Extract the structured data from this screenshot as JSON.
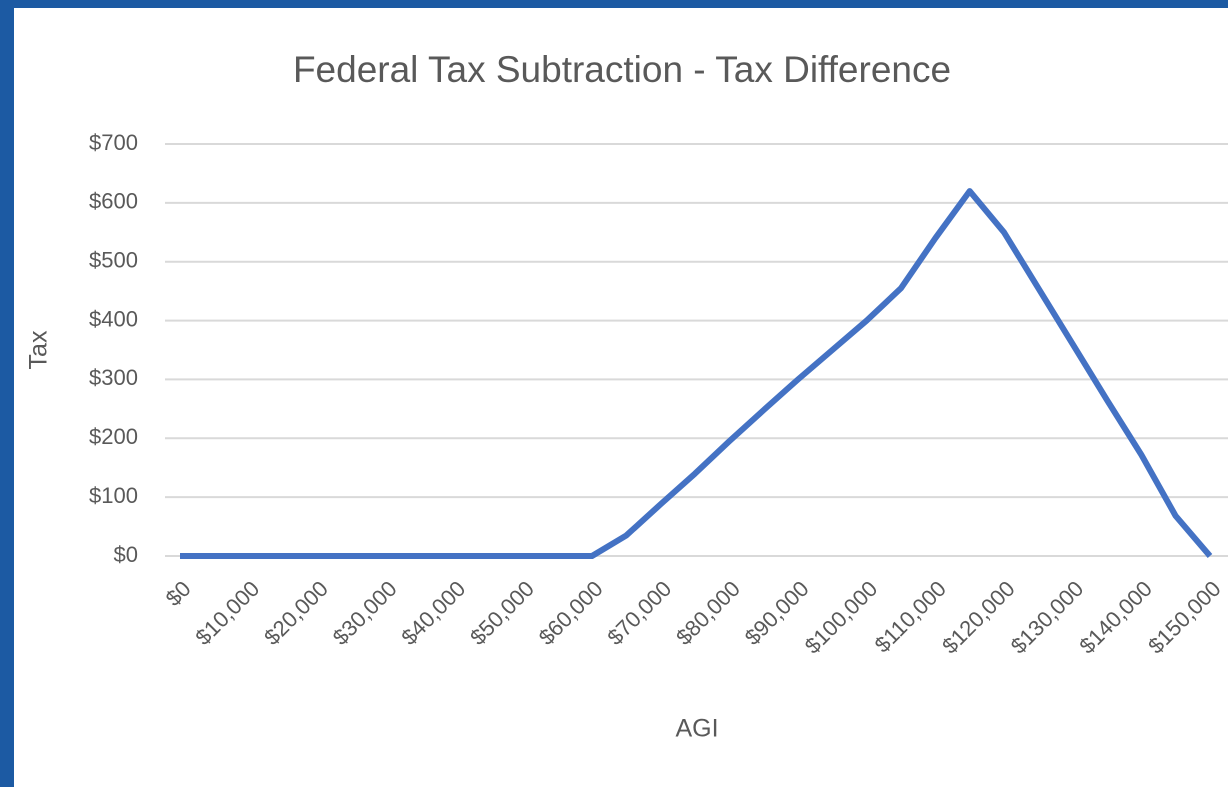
{
  "chart_data": {
    "type": "line",
    "title": "Federal Tax Subtraction - Tax Difference",
    "x_label": "AGI",
    "y_label": "Tax",
    "x": [
      0,
      5000,
      10000,
      15000,
      20000,
      25000,
      30000,
      35000,
      40000,
      45000,
      50000,
      55000,
      60000,
      65000,
      70000,
      75000,
      80000,
      85000,
      90000,
      95000,
      100000,
      105000,
      110000,
      115000,
      120000,
      125000,
      130000,
      135000,
      140000,
      145000,
      150000
    ],
    "series": [
      {
        "name": "Tax Difference",
        "color": "#4472c4",
        "values": [
          0,
          0,
          0,
          0,
          0,
          0,
          0,
          0,
          0,
          0,
          0,
          0,
          0,
          35,
          88,
          140,
          195,
          248,
          300,
          350,
          400,
          455,
          540,
          620,
          550,
          455,
          360,
          265,
          172,
          68,
          0
        ]
      }
    ],
    "xlim": [
      0,
      150000
    ],
    "xticks": [
      {
        "value": 0,
        "label": "$0"
      },
      {
        "value": 10000,
        "label": "$10,000"
      },
      {
        "value": 20000,
        "label": "$20,000"
      },
      {
        "value": 30000,
        "label": "$30,000"
      },
      {
        "value": 40000,
        "label": "$40,000"
      },
      {
        "value": 50000,
        "label": "$50,000"
      },
      {
        "value": 60000,
        "label": "$60,000"
      },
      {
        "value": 70000,
        "label": "$70,000"
      },
      {
        "value": 80000,
        "label": "$80,000"
      },
      {
        "value": 90000,
        "label": "$90,000"
      },
      {
        "value": 100000,
        "label": "$100,000"
      },
      {
        "value": 110000,
        "label": "$110,000"
      },
      {
        "value": 120000,
        "label": "$120,000"
      },
      {
        "value": 130000,
        "label": "$130,000"
      },
      {
        "value": 140000,
        "label": "$140,000"
      },
      {
        "value": 150000,
        "label": "$150,000"
      }
    ],
    "ylim": [
      0,
      700
    ],
    "yticks": [
      {
        "value": 0,
        "label": "$0"
      },
      {
        "value": 100,
        "label": "$100"
      },
      {
        "value": 200,
        "label": "$200"
      },
      {
        "value": 300,
        "label": "$300"
      },
      {
        "value": 400,
        "label": "$400"
      },
      {
        "value": 500,
        "label": "$500"
      },
      {
        "value": 600,
        "label": "$600"
      },
      {
        "value": 700,
        "label": "$700"
      }
    ],
    "grid": true
  }
}
